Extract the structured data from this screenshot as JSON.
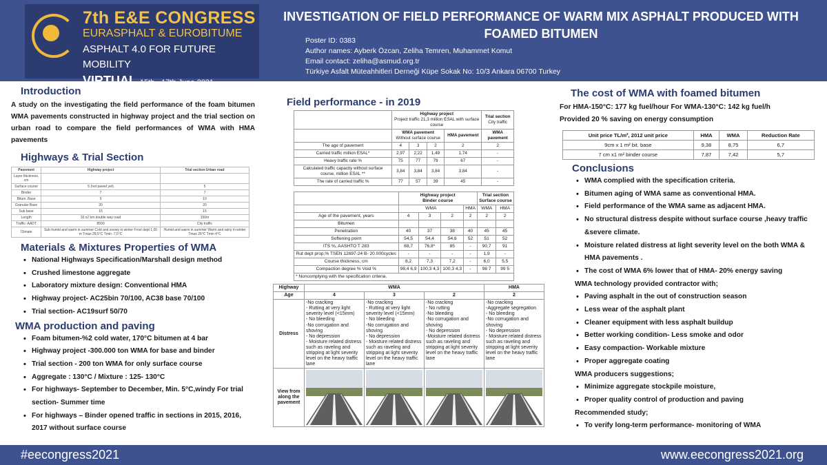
{
  "header": {
    "congress_title": "7th E&E CONGRESS",
    "congress_sub": "EURASPHALT & EUROBITUME",
    "congress_tag": "ASPHALT 4.0 FOR FUTURE MOBILITY",
    "congress_virtual": "VIRTUAL",
    "congress_dates": "15th - 17th June 2021",
    "poster_title": "INVESTIGATION OF FIELD PERFORMANCE OF WARM MIX ASPHALT PRODUCED WITH FOAMED BITUMEN",
    "poster_id": "Poster ID: 0383",
    "authors": "Author names: Ayberk Özcan, Zeliha Temren, Muhammet Komut",
    "email": "Email contact: zeliha@asmud.org.tr",
    "address": "Türkiye Asfalt Müteahhitleri Derneği Küpe Sokak No: 10/3 Ankara 06700 Turkey"
  },
  "colors": {
    "brand": "#3f5290",
    "gold": "#f4c246",
    "heading": "#2c3b70"
  },
  "intro": {
    "heading": "Introduction",
    "text": "A study on the investigating the field performance of the foam bitumen WMA pavements constructed in highway project and the trial section on urban road to compare the field performances of WMA with HMA pavements"
  },
  "highways": {
    "heading": "Highways & Trial Section",
    "head": [
      "Pavement",
      "Highway project",
      "Trial section Urban road"
    ],
    "rows": [
      [
        "Layer thickness, cm",
        "",
        ""
      ],
      [
        "Surface course",
        "5 (not paved yet)",
        "5"
      ],
      [
        "Binder",
        "7",
        "7"
      ],
      [
        "Bitum. Base",
        "9",
        "10"
      ],
      [
        "Granular Base",
        "20",
        "20"
      ],
      [
        "Sub base",
        "15",
        "15"
      ],
      [
        "Length",
        "33 x2 km double way road",
        "150m"
      ],
      [
        "Traffic- AADT",
        "8500",
        "City traffic"
      ],
      [
        "Climate",
        "Sub humid and warm in summer Cold and snowy in winter Frost dept 1,00 m Tmax 28,5°C Tmin -7,5°C",
        "Humid and warm in summer Warm and rainy in winter Tmax 26°C Tmin 4°C"
      ]
    ]
  },
  "materials": {
    "heading": "Materials & Mixtures Properties of WMA",
    "items": [
      "National Highways Specification/Marshall design method",
      "Crushed limestone aggregate",
      "Laboratory mixture design: Conventional HMA",
      "Highway project- AC25bin 70/100, AC38 base 70/100",
      "Trial section- AC19surf 50/70"
    ]
  },
  "production": {
    "heading": "WMA production and paving",
    "items": [
      "Foam bitumen-%2 cold water, 170°C bitumen at 4 bar",
      "Highway project -300.000 ton WMA for base and binder",
      "Trial section - 200 ton WMA for only surface course",
      "Aggregate : 130°C / Mixture : 125- 130°C",
      "For highways- September to December, Min. 5°C,windy For trial section- Summer time",
      "For highways – Binder opened traffic in sections in 2015, 2016, 2017 without surface course"
    ]
  },
  "field": {
    "heading": "Field performance - in 2019",
    "table1": {
      "group_highway": "Highway project",
      "group_highway_sub": "Project traffic 21,3 million ESAL with surface course",
      "group_trial": "Trial section",
      "group_trial_sub": "City traffic",
      "wma_label": "WMA pavement",
      "wma_sub": "Without surface course",
      "hma_label": "HMA pavement",
      "trial_wma_label": "WMA pavement",
      "rows": [
        [
          "The age of pavement",
          "4",
          "3",
          "2",
          "2",
          "2"
        ],
        [
          "Carried traffic million ESAL*",
          "2,97",
          "2,22",
          "1,49",
          "1,74",
          "-"
        ],
        [
          "Heavy traffic rate %",
          "75",
          "77",
          "79",
          "67",
          "-"
        ],
        [
          "Calculated traffic capacity without surface course, million ESAL **",
          "3,84",
          "3,84",
          "3,84",
          "3,84",
          "-"
        ],
        [
          "The rate of carried traffic %",
          "77",
          "57",
          "39",
          "45",
          "-"
        ]
      ]
    },
    "table2": {
      "group_highway": "Highway project",
      "group_highway_sub": "Binder course",
      "group_trial": "Trial section",
      "group_trial_sub": "Surface course",
      "col_wma": "WMA",
      "col_hma": "HMA",
      "rows": [
        [
          "Age of the pavement, years",
          "4",
          "3",
          "2",
          "2",
          "2",
          "2"
        ],
        [
          "Bitumen",
          "",
          "",
          "",
          "",
          "",
          ""
        ],
        [
          "Penetration",
          "40",
          "37",
          "38",
          "40",
          "45",
          "45"
        ],
        [
          "Softening point",
          "54,5",
          "54,4",
          "54,6",
          "52",
          "51",
          "52"
        ],
        [
          "ITS %, AASHTO T 283",
          "88,7",
          "76,8*",
          "85",
          "-",
          "90,7",
          "91"
        ],
        [
          "Rut dept prop.% TSEN 12697-24 B- 20.000cycles",
          "-",
          "-",
          "-",
          "-",
          "1,9",
          "-"
        ],
        [
          "Course thickness, cm",
          "8,2",
          "7,3",
          "7,2",
          "-",
          "6,0",
          "5,5"
        ],
        [
          "Compaction degree % Void %",
          "98,4 6,9",
          "100,3 4,3",
          "100,3 4,3",
          "-",
          "98 7",
          "99 5"
        ]
      ],
      "note": "* Noncomplying with the specification criteria."
    },
    "table3": {
      "col_highway": "Highway",
      "col_wma": "WMA",
      "col_hma": "HMA",
      "row_age": "Age",
      "ages": [
        "4",
        "3",
        "2",
        "2"
      ],
      "row_distress": "Distress",
      "distress": [
        "-No cracking\n- Rutting at very light severity level (<15mm)\n- No bleeding\n-No corrugation and shoving\n- No depression\n- Moisture related distress such as raveling and stripping at light severity level on the heavy traffic lane",
        "-No cracking\n- Rutting at very light severity level (<15mm)\n- No bleeding\n-No corrugation and shoving\n- No depression\n- Moisture related distress such as raveling and stripping at light severity level on the heavy traffic lane",
        "-No cracking\n- No rutting\n-No bleeding\n-No corrugation and shoving\n- No depression\n-Moisture related distress such as raveling and stripping at light severity level on the heavy traffic lane",
        "-No cracking\n-Aggregate segregation\n- No bleeding\n-No corrugation and shoving\n- No depression\n- Moisture related distress such as raveling and stripping at light severity level on the heavy traffic lane"
      ],
      "row_view": "View from along the pavement"
    }
  },
  "cost": {
    "heading": "The cost of WMA with foamed bitumen",
    "line1": "For HMA-150°C: 177 kg fuel/hour For WMA-130°C: 142 kg fuel/h",
    "line2": "Provided 20 % saving on energy consumption",
    "table": {
      "head": [
        "Unit price TL/m², 2012 unit price",
        "HMA",
        "WMA",
        "Reduction Rate"
      ],
      "rows": [
        [
          "9cm x 1 m² bit. base",
          "9,38",
          "8,75",
          "6,7"
        ],
        [
          "7 cm x1 m² binder course",
          "7,87",
          "7,42",
          "5,7"
        ]
      ]
    }
  },
  "conclusions": {
    "heading": "Conclusions",
    "items1": [
      "WMA complied with the specification criteria.",
      "Bitumen aging of WMA same as conventional HMA.",
      "Field performance of the WMA same as adjacent HMA.",
      "No structural distress despite without surface course ,heavy traffic &severe climate.",
      "Moisture related distress at light severity level on the both WMA & HMA pavements .",
      "The cost of WMA 6% lower that of HMA- 20% energy saving"
    ],
    "sub1": "WMA technology provided contractor with;",
    "items2": [
      "Paving asphalt in the out of construction season",
      "Less wear of the asphalt plant",
      "Cleaner equipment with less asphalt buildup",
      "Better working condition- Less smoke and odor",
      "Easy compaction- Workable mixture",
      "Proper aggregate coating"
    ],
    "sub2": "WMA producers suggestions;",
    "items3": [
      "Minimize aggregate stockpile moisture,",
      "Proper quality control of production and paving"
    ],
    "sub3": "Recommended study;",
    "items4": [
      "To verify long-term performance- monitoring of WMA"
    ]
  },
  "footer": {
    "hashtag": "#eecongress2021",
    "url": "www.eecongress2021.org"
  }
}
